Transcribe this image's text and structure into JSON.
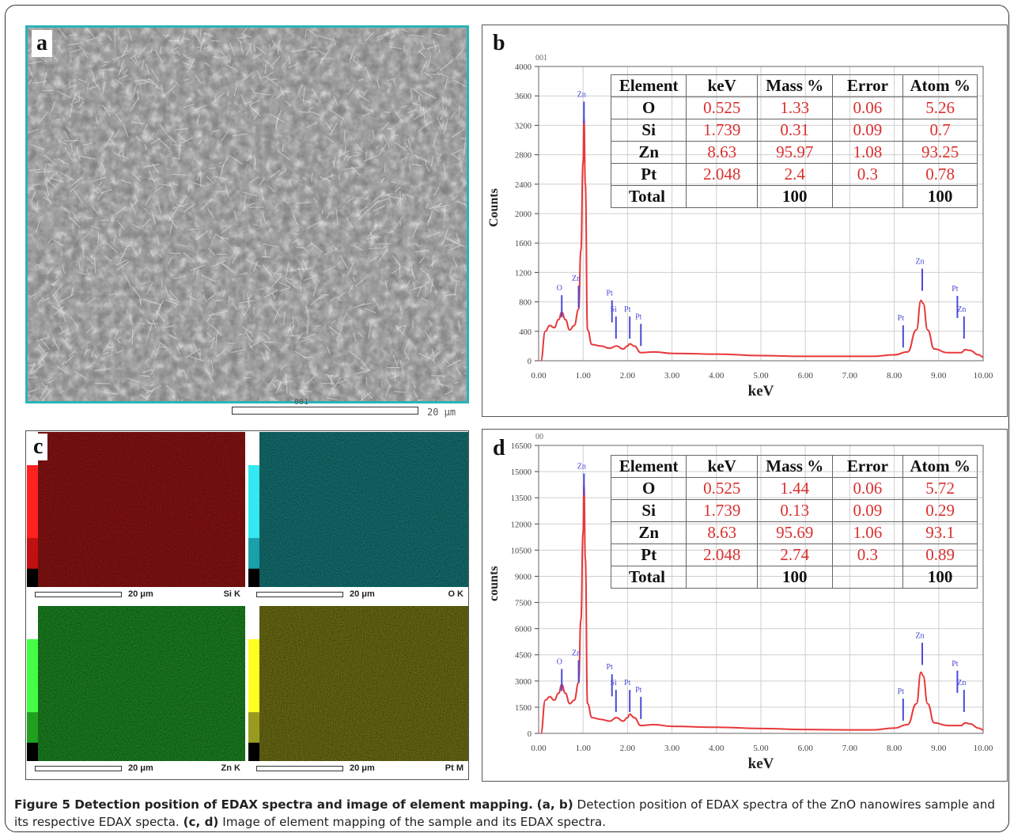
{
  "panels": {
    "a": {
      "letter": "a",
      "scale_code": "001",
      "scale_label": "20 μm"
    },
    "b": {
      "letter": "b",
      "code": "001"
    },
    "c": {
      "letter": "c"
    },
    "d": {
      "letter": "d",
      "code": "00"
    }
  },
  "maps": [
    {
      "element": "Si K",
      "scale": "20 μm",
      "color": "#b01818",
      "bar_colors": [
        "#ff2020",
        "#c01010",
        "#000000"
      ]
    },
    {
      "element": "O K",
      "scale": "20 μm",
      "color": "#1a8f90",
      "bar_colors": [
        "#33e8f0",
        "#1aa0a8",
        "#000000"
      ]
    },
    {
      "element": "Zn K",
      "scale": "20 μm",
      "color": "#22a528",
      "bar_colors": [
        "#44ff44",
        "#1fa01f",
        "#000000"
      ]
    },
    {
      "element": "Pt M",
      "scale": "20 μm",
      "color": "#8a8a1a",
      "bar_colors": [
        "#ffff22",
        "#9a9a20",
        "#000000"
      ]
    }
  ],
  "tables": {
    "b": {
      "headers": [
        "Element",
        "keV",
        "Mass %",
        "Error",
        "Atom %"
      ],
      "rows": [
        [
          "O",
          "0.525",
          "1.33",
          "0.06",
          "5.26"
        ],
        [
          "Si",
          "1.739",
          "0.31",
          "0.09",
          "0.7"
        ],
        [
          "Zn",
          "8.63",
          "95.97",
          "1.08",
          "93.25"
        ],
        [
          "Pt",
          "2.048",
          "2.4",
          "0.3",
          "0.78"
        ]
      ],
      "total": [
        "Total",
        "",
        "100",
        "",
        "100"
      ]
    },
    "d": {
      "headers": [
        "Element",
        "keV",
        "Mass %",
        "Error",
        "Atom %"
      ],
      "rows": [
        [
          "O",
          "0.525",
          "1.44",
          "0.06",
          "5.72"
        ],
        [
          "Si",
          "1.739",
          "0.13",
          "0.09",
          "0.29"
        ],
        [
          "Zn",
          "8.63",
          "95.69",
          "1.06",
          "93.1"
        ],
        [
          "Pt",
          "2.048",
          "2.74",
          "0.3",
          "0.89"
        ]
      ],
      "total": [
        "Total",
        "",
        "100",
        "",
        "100"
      ]
    }
  },
  "chart_data": [
    {
      "id": "b",
      "type": "line",
      "xlabel": "keV",
      "ylabel": "Counts",
      "xlim": [
        0,
        10
      ],
      "ylim": [
        0,
        4000
      ],
      "xticks": [
        "0.00",
        "1.00",
        "2.00",
        "3.00",
        "4.00",
        "5.00",
        "6.00",
        "7.00",
        "8.00",
        "9.00",
        "10.00"
      ],
      "yticks": [
        "0",
        "400",
        "800",
        "1200",
        "1600",
        "2000",
        "2400",
        "2800",
        "3200",
        "3600",
        "4000"
      ],
      "line_color": "#e8383a",
      "marker_color": "#4a4ad8",
      "x": [
        0.05,
        0.15,
        0.25,
        0.35,
        0.45,
        0.52,
        0.6,
        0.7,
        0.8,
        0.9,
        0.95,
        1.0,
        1.02,
        1.05,
        1.1,
        1.2,
        1.4,
        1.6,
        1.75,
        1.9,
        2.0,
        2.05,
        2.15,
        2.3,
        2.6,
        3.0,
        4.0,
        5.0,
        6.0,
        7.0,
        7.5,
        8.0,
        8.3,
        8.5,
        8.6,
        8.65,
        8.75,
        8.9,
        9.2,
        9.5,
        9.6,
        9.7,
        9.9,
        10.0
      ],
      "y": [
        0,
        400,
        480,
        450,
        560,
        660,
        560,
        420,
        480,
        700,
        1500,
        2700,
        3290,
        2400,
        420,
        220,
        200,
        170,
        200,
        160,
        200,
        230,
        200,
        110,
        120,
        100,
        90,
        70,
        60,
        60,
        60,
        80,
        120,
        420,
        820,
        780,
        420,
        160,
        110,
        110,
        150,
        140,
        80,
        50
      ],
      "peak_labels": [
        {
          "label": "O",
          "x": 0.52,
          "y": 870
        },
        {
          "label": "Zn",
          "x": 0.9,
          "y": 1000
        },
        {
          "label": "Zn",
          "x": 1.02,
          "y": 3500
        },
        {
          "label": "Pt",
          "x": 1.65,
          "y": 800
        },
        {
          "label": "Si",
          "x": 1.74,
          "y": 580
        },
        {
          "label": "Pt",
          "x": 2.05,
          "y": 580
        },
        {
          "label": "Pt",
          "x": 2.3,
          "y": 480
        },
        {
          "label": "Pt",
          "x": 8.2,
          "y": 460
        },
        {
          "label": "Zn",
          "x": 8.63,
          "y": 1230
        },
        {
          "label": "Pt",
          "x": 9.42,
          "y": 860
        },
        {
          "label": "Zn",
          "x": 9.57,
          "y": 580
        }
      ]
    },
    {
      "id": "d",
      "type": "line",
      "xlabel": "keV",
      "ylabel": "counts",
      "xlim": [
        0,
        10
      ],
      "ylim": [
        0,
        16500
      ],
      "xticks": [
        "0.00",
        "1.00",
        "2.00",
        "3.00",
        "4.00",
        "5.00",
        "6.00",
        "7.00",
        "8.00",
        "9.00",
        "10.00"
      ],
      "yticks": [
        "0",
        "1500",
        "3000",
        "4500",
        "6000",
        "7500",
        "9000",
        "10500",
        "12000",
        "13500",
        "15000",
        "16500"
      ],
      "line_color": "#e8383a",
      "marker_color": "#4a4ad8",
      "x": [
        0.05,
        0.15,
        0.25,
        0.35,
        0.45,
        0.52,
        0.6,
        0.7,
        0.8,
        0.9,
        0.95,
        1.0,
        1.02,
        1.05,
        1.1,
        1.2,
        1.4,
        1.6,
        1.75,
        1.9,
        2.0,
        2.05,
        2.15,
        2.3,
        2.6,
        3.0,
        4.0,
        5.0,
        6.0,
        7.0,
        7.5,
        8.0,
        8.3,
        8.5,
        8.6,
        8.65,
        8.75,
        8.9,
        9.2,
        9.5,
        9.6,
        9.7,
        9.9,
        10.0
      ],
      "y": [
        0,
        1900,
        2100,
        1900,
        2300,
        2800,
        2300,
        1700,
        1900,
        2900,
        6500,
        11500,
        14200,
        10000,
        1700,
        900,
        800,
        700,
        900,
        700,
        900,
        1100,
        900,
        450,
        500,
        400,
        350,
        280,
        220,
        200,
        200,
        300,
        500,
        1700,
        3500,
        3300,
        1700,
        600,
        450,
        450,
        600,
        550,
        300,
        200
      ],
      "peak_labels": [
        {
          "label": "O",
          "x": 0.52,
          "y": 3600
        },
        {
          "label": "Zn",
          "x": 0.9,
          "y": 4100
        },
        {
          "label": "Zn",
          "x": 1.02,
          "y": 14800
        },
        {
          "label": "Pt",
          "x": 1.65,
          "y": 3300
        },
        {
          "label": "Si",
          "x": 1.74,
          "y": 2400
        },
        {
          "label": "Pt",
          "x": 2.05,
          "y": 2400
        },
        {
          "label": "Pt",
          "x": 2.3,
          "y": 2000
        },
        {
          "label": "Pt",
          "x": 8.2,
          "y": 1900
        },
        {
          "label": "Zn",
          "x": 8.63,
          "y": 5100
        },
        {
          "label": "Pt",
          "x": 9.42,
          "y": 3500
        },
        {
          "label": "Zn",
          "x": 9.57,
          "y": 2400
        }
      ]
    }
  ],
  "caption": {
    "title": "Figure 5 Detection position of EDAX spectra and image of element mapping.",
    "ref1": "(a, b)",
    "text1": " Detection position of EDAX spectra of the ZnO nanowires sample and its respective EDAX specta. ",
    "ref2": "(c, d)",
    "text2": " Image of element mapping of the sample and its EDAX spectra."
  }
}
